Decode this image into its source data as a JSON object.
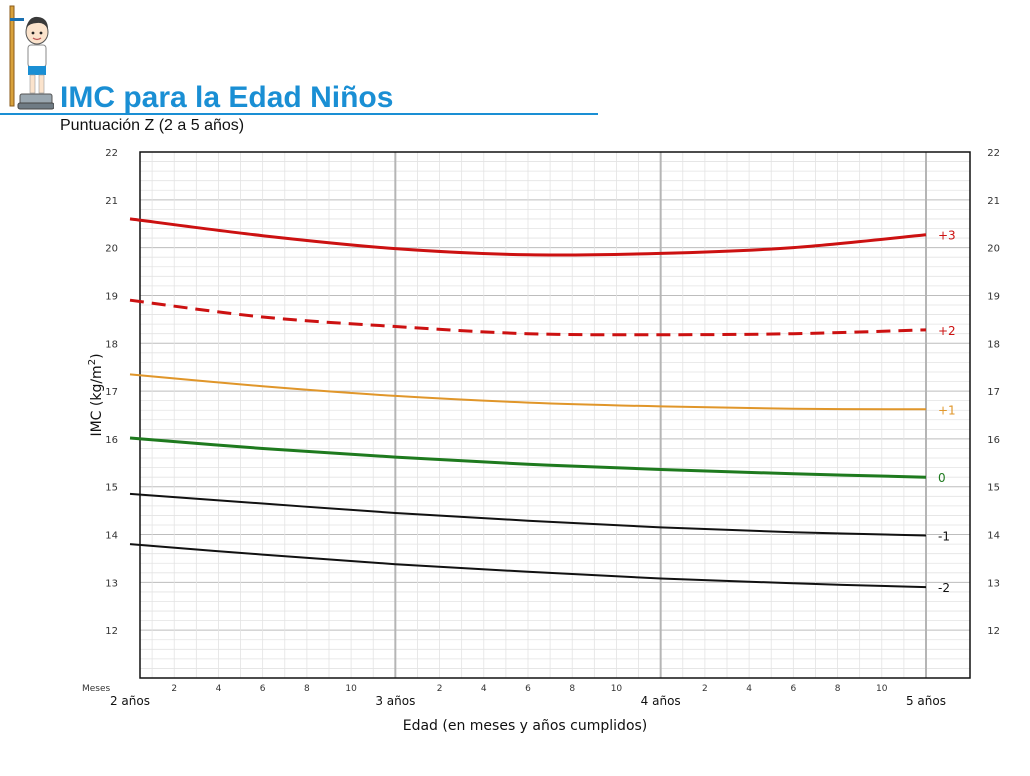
{
  "header": {
    "title": "IMC para la Edad Niños",
    "subtitle": "Puntuación Z (2 a 5 años)"
  },
  "colors": {
    "title": "#1a8fd4",
    "plus3": "#cc1111",
    "plus2": "#cc1111",
    "plus1": "#e0962a",
    "zero": "#1e7a1e",
    "minus": "#111111"
  },
  "chart_data": {
    "type": "line",
    "title": "IMC para la Edad Niños",
    "subtitle": "Puntuación Z (2 a 5 años)",
    "xlabel": "Edad (en meses y años cumplidos)",
    "ylabel": "IMC (kg/m2)",
    "ylabel_prefix": "IMC (kg/m",
    "ylabel_sup": "2",
    "ylabel_suffix": ")",
    "months_label": "Meses",
    "xlim": [
      24,
      60
    ],
    "ylim": [
      11,
      22
    ],
    "y_ticks": [
      12,
      13,
      14,
      15,
      16,
      17,
      18,
      19,
      20,
      21,
      22
    ],
    "month_ticks": [
      {
        "x": 26,
        "label": "2"
      },
      {
        "x": 28,
        "label": "4"
      },
      {
        "x": 30,
        "label": "6"
      },
      {
        "x": 32,
        "label": "8"
      },
      {
        "x": 34,
        "label": "10"
      },
      {
        "x": 38,
        "label": "2"
      },
      {
        "x": 40,
        "label": "4"
      },
      {
        "x": 42,
        "label": "6"
      },
      {
        "x": 44,
        "label": "8"
      },
      {
        "x": 46,
        "label": "10"
      },
      {
        "x": 50,
        "label": "2"
      },
      {
        "x": 52,
        "label": "4"
      },
      {
        "x": 54,
        "label": "6"
      },
      {
        "x": 56,
        "label": "8"
      },
      {
        "x": 58,
        "label": "10"
      }
    ],
    "year_ticks": [
      {
        "x": 24,
        "label": "2 años"
      },
      {
        "x": 36,
        "label": "3 años"
      },
      {
        "x": 48,
        "label": "4 años"
      },
      {
        "x": 60,
        "label": "5 años"
      }
    ],
    "grid": true,
    "x": [
      24,
      30,
      36,
      42,
      48,
      54,
      60
    ],
    "series": [
      {
        "name": "+3",
        "color": "#cc1111",
        "dash": false,
        "width": 3,
        "values": [
          20.6,
          20.25,
          19.98,
          19.85,
          19.88,
          20.0,
          20.27
        ]
      },
      {
        "name": "+2",
        "color": "#cc1111",
        "dash": true,
        "width": 3,
        "values": [
          18.9,
          18.55,
          18.35,
          18.2,
          18.18,
          18.2,
          18.28
        ]
      },
      {
        "name": "+1",
        "color": "#e0962a",
        "dash": false,
        "width": 2,
        "values": [
          17.35,
          17.1,
          16.9,
          16.76,
          16.68,
          16.63,
          16.62
        ]
      },
      {
        "name": "0",
        "color": "#1e7a1e",
        "dash": false,
        "width": 3,
        "values": [
          16.02,
          15.8,
          15.62,
          15.47,
          15.36,
          15.27,
          15.2
        ]
      },
      {
        "name": "-1",
        "color": "#111111",
        "dash": false,
        "width": 2,
        "values": [
          14.85,
          14.65,
          14.45,
          14.29,
          14.15,
          14.05,
          13.98
        ]
      },
      {
        "name": "-2",
        "color": "#111111",
        "dash": false,
        "width": 2,
        "values": [
          13.8,
          13.58,
          13.38,
          13.22,
          13.08,
          12.98,
          12.9
        ]
      }
    ]
  }
}
